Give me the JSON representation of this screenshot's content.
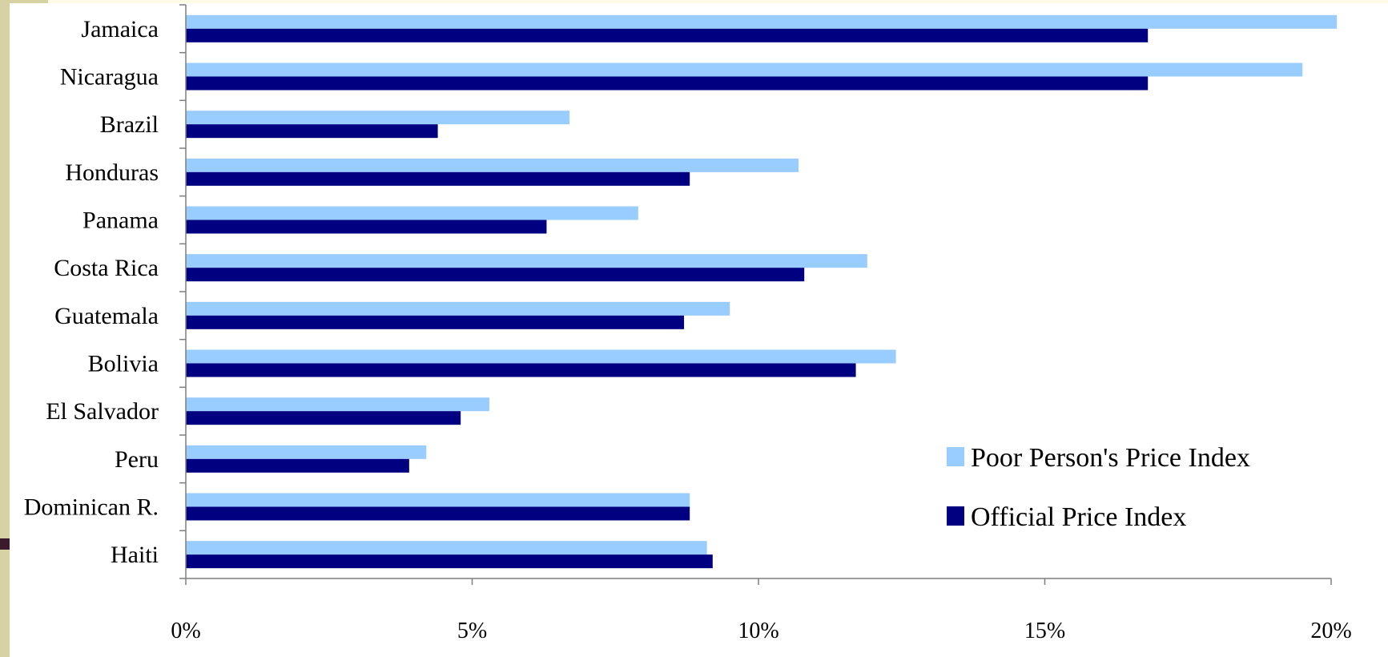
{
  "colors": {
    "poor": "#99ccff",
    "official": "#000080",
    "axis": "#7f7f7f"
  },
  "chart_data": {
    "type": "bar",
    "orientation": "horizontal",
    "categories": [
      "Jamaica",
      "Nicaragua",
      "Brazil",
      "Honduras",
      "Panama",
      "Costa Rica",
      "Guatemala",
      "Bolivia",
      "El Salvador",
      "Peru",
      "Dominican R.",
      "Haiti"
    ],
    "series": [
      {
        "name": "Poor Person's Price Index",
        "values": [
          20.1,
          19.5,
          6.7,
          10.7,
          7.9,
          11.9,
          9.5,
          12.4,
          5.3,
          4.2,
          8.8,
          9.1
        ]
      },
      {
        "name": "Official Price Index",
        "values": [
          16.8,
          16.8,
          4.4,
          8.8,
          6.3,
          10.8,
          8.7,
          11.7,
          4.8,
          3.9,
          8.8,
          9.2
        ]
      }
    ],
    "xlim": [
      0,
      20
    ],
    "xticks": [
      "0%",
      "5%",
      "10%",
      "15%",
      "20%"
    ],
    "xtick_values": [
      0,
      5,
      10,
      15,
      20
    ],
    "grid": false,
    "legend": "right"
  }
}
